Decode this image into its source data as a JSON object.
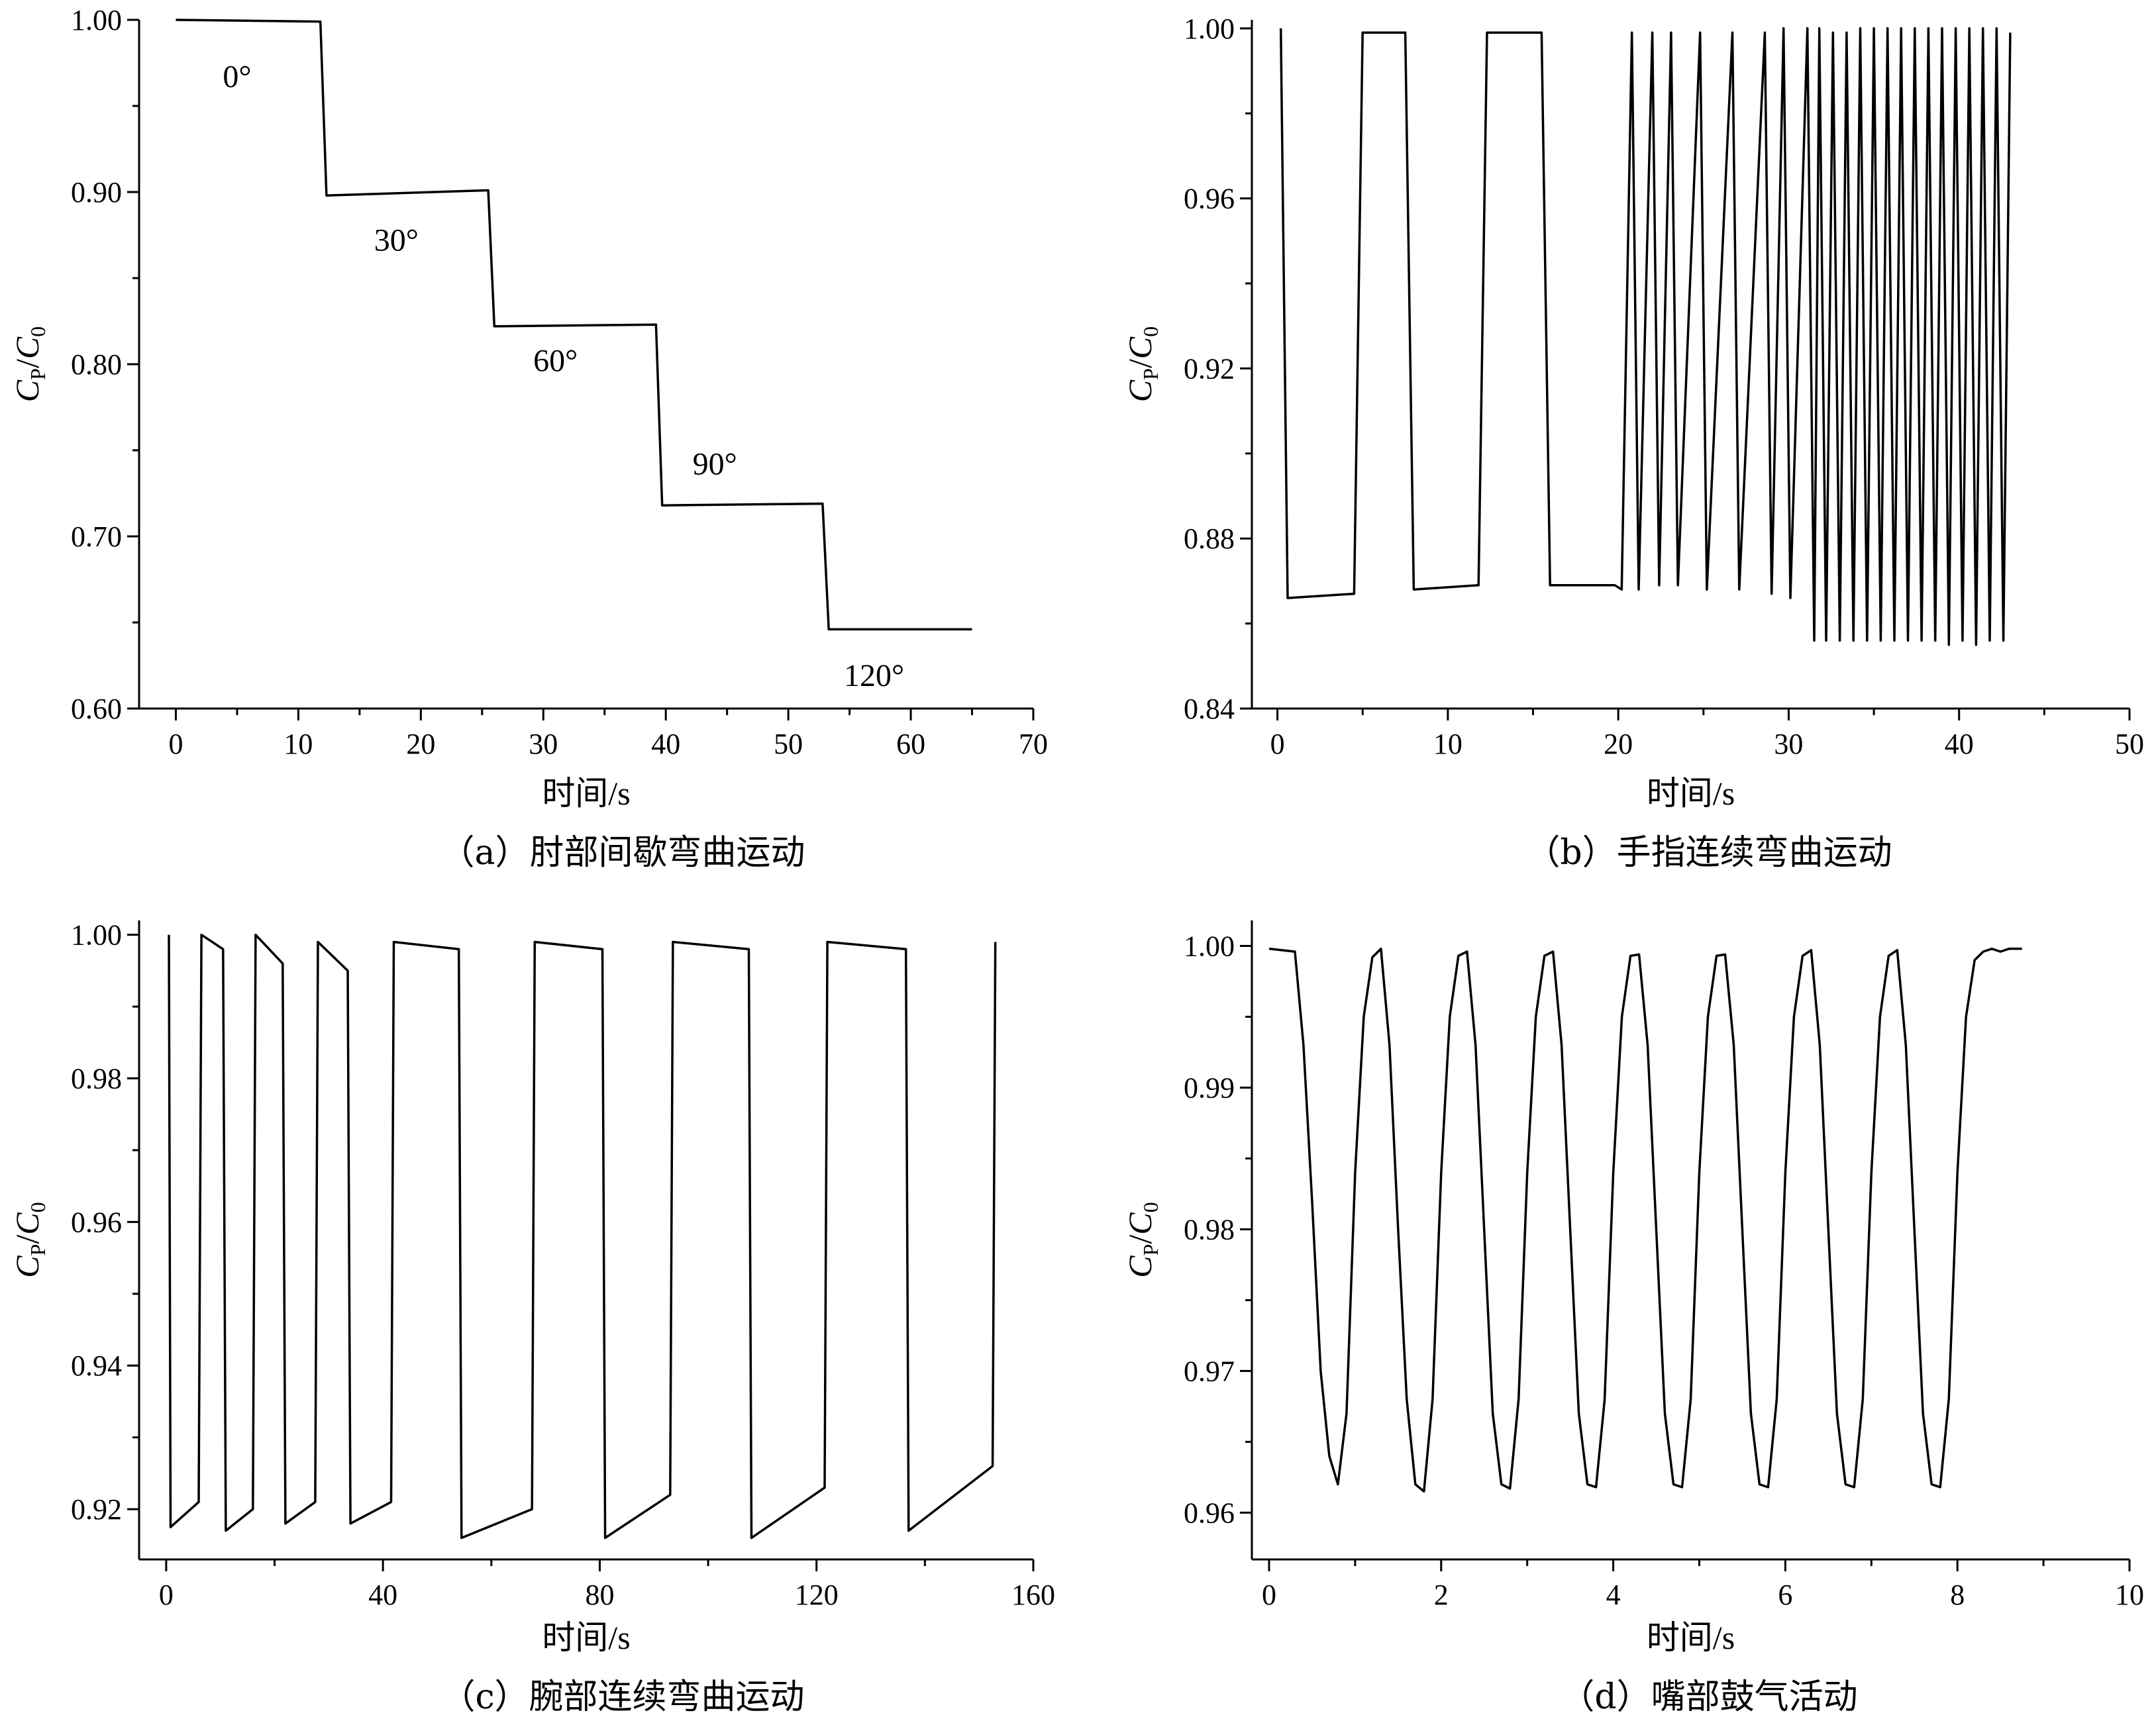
{
  "chart_data": [
    {
      "id": "a",
      "type": "line",
      "caption": "（a）肘部间歇弯曲运动",
      "xlabel": "时间/s",
      "ylabel": {
        "main": "C",
        "sub1": "P",
        "slash": "/",
        "main2": "C",
        "sub2": "0"
      },
      "xlim": [
        -3,
        70
      ],
      "ylim": [
        0.6,
        1.0
      ],
      "xticks": [
        0,
        10,
        20,
        30,
        40,
        50,
        60,
        70
      ],
      "yticks": [
        0.6,
        0.7,
        0.8,
        0.9,
        1.0
      ],
      "ytick_labels": [
        "0.60",
        "0.70",
        "0.80",
        "0.90",
        "1.00"
      ],
      "annotations": [
        {
          "text": "0°",
          "x": 5,
          "y": 0.961
        },
        {
          "text": "30°",
          "x": 18,
          "y": 0.866
        },
        {
          "text": "60°",
          "x": 31,
          "y": 0.796
        },
        {
          "text": "90°",
          "x": 44,
          "y": 0.736
        },
        {
          "text": "120°",
          "x": 57,
          "y": 0.613
        }
      ],
      "series": [
        {
          "x": [
            0,
            11.8,
            12.3,
            25.5,
            26.0,
            39.2,
            39.7,
            52.8,
            53.3,
            65
          ],
          "y": [
            1.0,
            0.999,
            0.898,
            0.901,
            0.822,
            0.823,
            0.718,
            0.719,
            0.646,
            0.646
          ]
        }
      ]
    },
    {
      "id": "b",
      "type": "line",
      "caption": "（b）手指连续弯曲运动",
      "xlabel": "时间/s",
      "ylabel": {
        "main": "C",
        "sub1": "P",
        "slash": "/",
        "main2": "C",
        "sub2": "0"
      },
      "xlim": [
        -1.5,
        50
      ],
      "ylim": [
        0.84,
        1.002
      ],
      "xticks": [
        0,
        10,
        20,
        30,
        40,
        50
      ],
      "yticks": [
        0.84,
        0.88,
        0.92,
        0.96,
        1.0
      ],
      "ytick_labels": [
        "0.84",
        "0.88",
        "0.92",
        "0.96",
        "1.00"
      ],
      "series": [
        {
          "x": [
            0.2,
            0.6,
            4.5,
            5.0,
            7.5,
            8.0,
            11.8,
            12.3,
            15.5,
            16.0,
            19.8,
            20.2,
            20.8,
            21.2,
            22.0,
            22.4,
            23.1,
            23.5,
            24.8,
            25.2,
            26.7,
            27.1,
            28.6,
            29.0,
            29.7,
            30.1,
            31.1,
            31.5,
            31.8,
            32.2,
            32.6,
            33.0,
            33.4,
            33.8,
            34.2,
            34.6,
            35.0,
            35.4,
            35.8,
            36.2,
            36.6,
            37.0,
            37.4,
            37.8,
            38.2,
            38.6,
            39.0,
            39.4,
            39.8,
            40.2,
            40.6,
            41.0,
            41.4,
            41.8,
            42.2,
            42.6,
            43.0
          ],
          "y": [
            1.0,
            0.866,
            0.867,
            0.999,
            0.999,
            0.868,
            0.869,
            0.999,
            0.999,
            0.869,
            0.869,
            0.868,
            0.999,
            0.868,
            0.999,
            0.869,
            0.999,
            0.869,
            0.999,
            0.868,
            0.999,
            0.868,
            0.999,
            0.867,
            1.0,
            0.866,
            1.0,
            0.856,
            1.0,
            0.856,
            0.999,
            0.856,
            0.999,
            0.856,
            1.0,
            0.856,
            1.0,
            0.856,
            1.0,
            0.856,
            1.0,
            0.856,
            1.0,
            0.856,
            1.0,
            0.856,
            1.0,
            0.855,
            1.0,
            0.856,
            1.0,
            0.855,
            1.0,
            0.856,
            1.0,
            0.856,
            0.999
          ]
        }
      ]
    },
    {
      "id": "c",
      "type": "line",
      "caption": "（c）腕部连续弯曲运动",
      "xlabel": "时间/s",
      "ylabel": {
        "main": "C",
        "sub1": "P",
        "slash": "/",
        "main2": "C",
        "sub2": "0"
      },
      "xlim": [
        -5,
        160
      ],
      "ylim": [
        0.913,
        1.002
      ],
      "xticks": [
        0,
        40,
        80,
        120,
        160
      ],
      "yticks": [
        0.92,
        0.94,
        0.96,
        0.98,
        1.0
      ],
      "ytick_labels": [
        "0.92",
        "0.94",
        "0.96",
        "0.98",
        "1.00"
      ],
      "series": [
        {
          "x": [
            0.5,
            0.8,
            6.0,
            6.5,
            10.5,
            11.0,
            16.0,
            16.5,
            21.5,
            22.0,
            27.5,
            28.0,
            33.5,
            34.0,
            41.5,
            42.0,
            54.0,
            54.5,
            67.5,
            68.0,
            80.5,
            81.0,
            93.0,
            93.5,
            107.5,
            108.0,
            121.5,
            122.0,
            136.5,
            137.0,
            152.5,
            153.0
          ],
          "y": [
            1.0,
            0.9175,
            0.921,
            1.0,
            0.998,
            0.917,
            0.92,
            1.0,
            0.996,
            0.918,
            0.921,
            0.999,
            0.995,
            0.918,
            0.921,
            0.999,
            0.998,
            0.916,
            0.92,
            0.999,
            0.998,
            0.916,
            0.922,
            0.999,
            0.998,
            0.916,
            0.923,
            0.999,
            0.998,
            0.917,
            0.926,
            0.999
          ]
        }
      ]
    },
    {
      "id": "d",
      "type": "line",
      "caption": "（d）嘴部鼓气活动",
      "xlabel": "时间/s",
      "ylabel": {
        "main": "C",
        "sub1": "P",
        "slash": "/",
        "main2": "C",
        "sub2": "0"
      },
      "xlim": [
        -0.2,
        10
      ],
      "ylim": [
        0.9567,
        1.0018
      ],
      "xticks": [
        0,
        2,
        4,
        6,
        8,
        10
      ],
      "yticks": [
        0.96,
        0.97,
        0.98,
        0.99,
        1.0
      ],
      "ytick_labels": [
        "0.96",
        "0.97",
        "0.98",
        "0.99",
        "1.00"
      ],
      "series": [
        {
          "x": [
            0,
            0.3,
            0.4,
            0.5,
            0.6,
            0.7,
            0.8,
            0.9,
            1.0,
            1.1,
            1.2,
            1.3,
            1.4,
            1.5,
            1.6,
            1.7,
            1.8,
            1.9,
            2.0,
            2.1,
            2.2,
            2.3,
            2.4,
            2.5,
            2.6,
            2.7,
            2.8,
            2.9,
            3.0,
            3.1,
            3.2,
            3.3,
            3.4,
            3.5,
            3.6,
            3.7,
            3.8,
            3.9,
            4.0,
            4.1,
            4.2,
            4.3,
            4.4,
            4.5,
            4.6,
            4.7,
            4.8,
            4.9,
            5.0,
            5.1,
            5.2,
            5.3,
            5.4,
            5.5,
            5.6,
            5.7,
            5.8,
            5.9,
            6.0,
            6.1,
            6.2,
            6.3,
            6.4,
            6.5,
            6.6,
            6.7,
            6.8,
            6.9,
            7.0,
            7.1,
            7.2,
            7.3,
            7.4,
            7.5,
            7.6,
            7.7,
            7.8,
            7.9,
            8.0,
            8.1,
            8.2,
            8.3,
            8.4,
            8.5,
            8.6,
            8.75
          ],
          "y": [
            0.9998,
            0.9996,
            0.993,
            0.982,
            0.97,
            0.964,
            0.962,
            0.967,
            0.984,
            0.995,
            0.9992,
            0.9998,
            0.993,
            0.98,
            0.968,
            0.962,
            0.9615,
            0.968,
            0.984,
            0.995,
            0.9993,
            0.9996,
            0.993,
            0.98,
            0.967,
            0.962,
            0.9617,
            0.968,
            0.984,
            0.995,
            0.9993,
            0.9996,
            0.993,
            0.98,
            0.967,
            0.962,
            0.9618,
            0.968,
            0.984,
            0.995,
            0.9993,
            0.9994,
            0.993,
            0.98,
            0.967,
            0.962,
            0.9618,
            0.968,
            0.984,
            0.995,
            0.9993,
            0.9994,
            0.993,
            0.98,
            0.967,
            0.962,
            0.9618,
            0.968,
            0.984,
            0.995,
            0.9993,
            0.9997,
            0.993,
            0.98,
            0.967,
            0.962,
            0.9618,
            0.968,
            0.984,
            0.995,
            0.9993,
            0.9997,
            0.993,
            0.98,
            0.967,
            0.962,
            0.9618,
            0.968,
            0.984,
            0.995,
            0.999,
            0.9996,
            0.9998,
            0.9996,
            0.9998,
            0.9998
          ]
        }
      ]
    }
  ]
}
